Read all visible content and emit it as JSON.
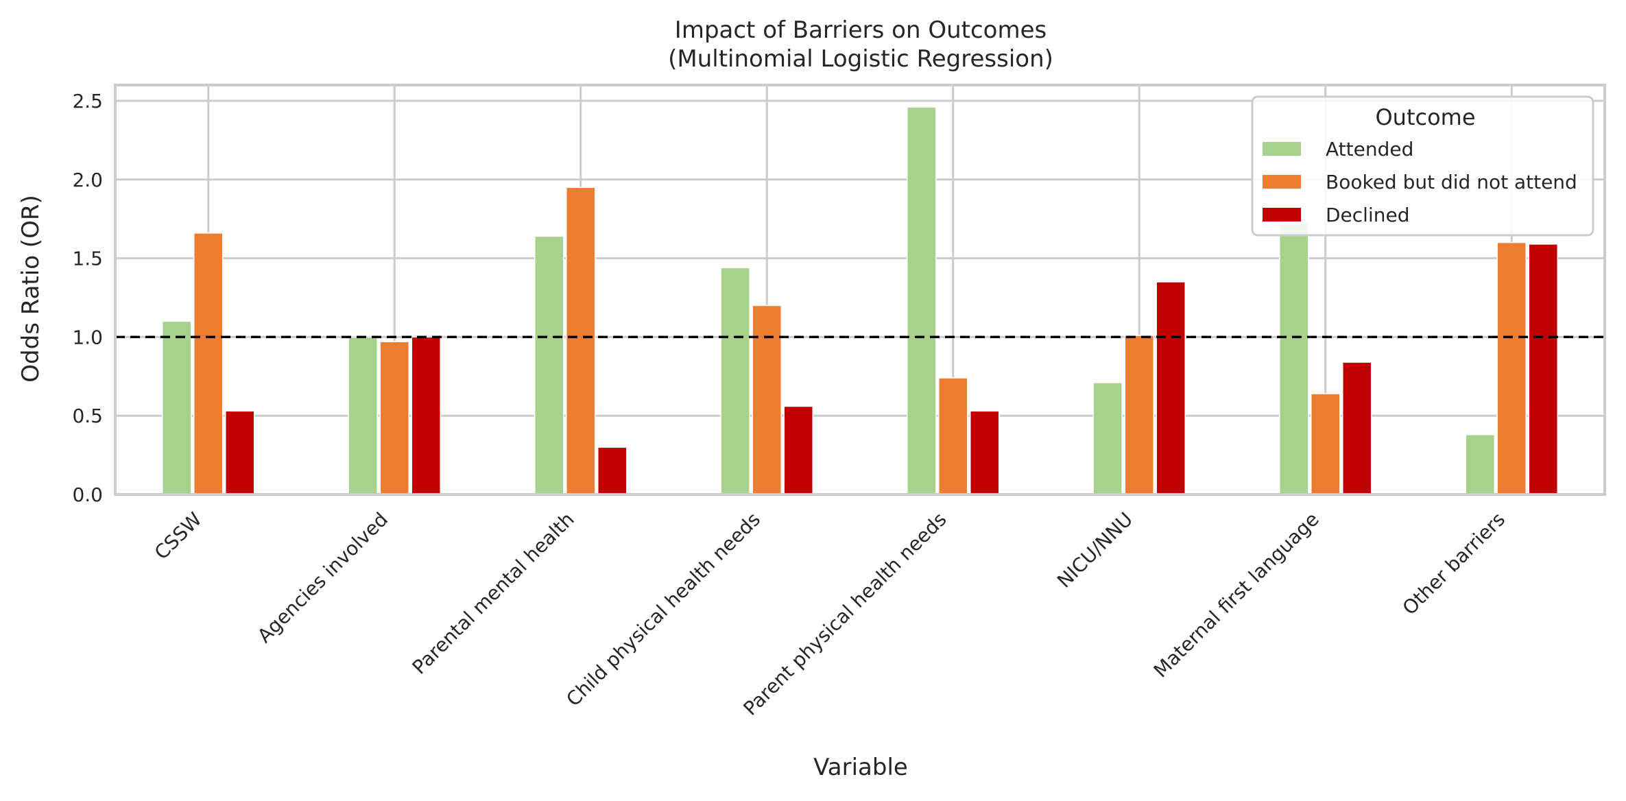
{
  "chart_data": {
    "type": "bar",
    "title": "Impact of Barriers on Outcomes",
    "subtitle": "(Multinomial Logistic Regression)",
    "xlabel": "Variable",
    "ylabel": "Odds Ratio (OR)",
    "ylim": [
      0,
      2.6
    ],
    "yticks": [
      "0.0",
      "0.5",
      "1.0",
      "1.5",
      "2.0",
      "2.5"
    ],
    "grid": true,
    "reference_line": 1.0,
    "legend": {
      "title": "Outcome",
      "placement": "top-right"
    },
    "categories": [
      "CSSW",
      "Agencies involved",
      "Parental mental health",
      "Child physical health needs",
      "Parent physical health needs",
      "NICU/NNU",
      "Maternal first language",
      "Other barriers"
    ],
    "series": [
      {
        "name": "Attended",
        "color": "#a6d28d",
        "values": [
          1.1,
          1.0,
          1.64,
          1.44,
          2.46,
          0.71,
          1.72,
          0.38
        ]
      },
      {
        "name": "Booked but did not attend",
        "color": "#ed7d31",
        "values": [
          1.66,
          0.97,
          1.95,
          1.2,
          0.74,
          1.01,
          0.64,
          1.6
        ]
      },
      {
        "name": "Declined",
        "color": "#c00000",
        "values": [
          0.53,
          1.0,
          0.3,
          0.56,
          0.53,
          1.35,
          0.84,
          1.59
        ]
      }
    ]
  }
}
